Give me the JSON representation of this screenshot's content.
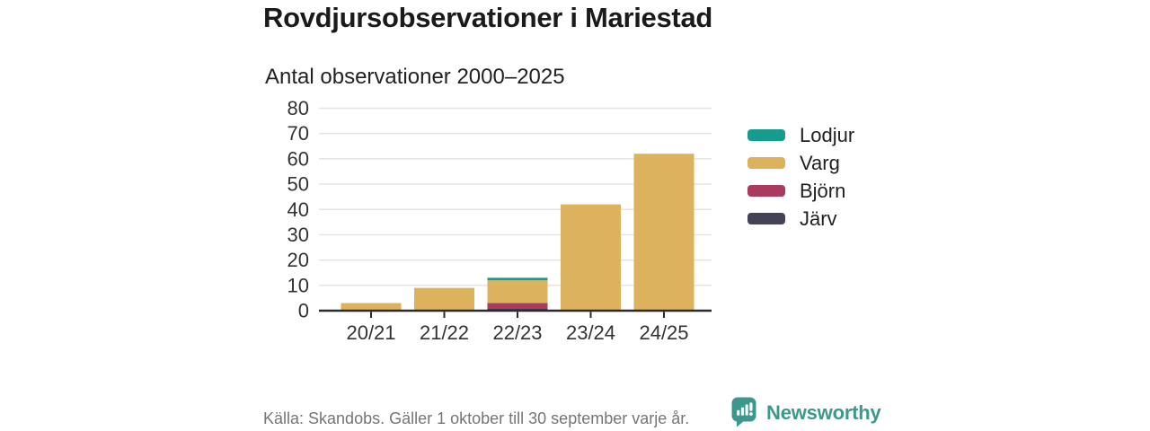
{
  "header": {
    "title": "Rovdjursobservationer i Mariestad",
    "subtitle": "Antal observationer 2000–2025"
  },
  "chart_data": {
    "type": "bar",
    "stacked": true,
    "title": "Rovdjursobservationer i Mariestad",
    "subtitle": "Antal observationer 2000–2025",
    "categories": [
      "20/21",
      "21/22",
      "22/23",
      "23/24",
      "24/25"
    ],
    "series": [
      {
        "name": "Lodjur",
        "color": "#169B8F",
        "values": [
          0,
          0,
          1,
          0,
          0
        ]
      },
      {
        "name": "Varg",
        "color": "#DDB25C",
        "values": [
          3,
          9,
          9,
          42,
          62
        ]
      },
      {
        "name": "Björn",
        "color": "#A93B5E",
        "values": [
          0,
          0,
          2,
          0,
          0
        ]
      },
      {
        "name": "Järv",
        "color": "#434257",
        "values": [
          0,
          0,
          1,
          0,
          0
        ]
      }
    ],
    "stack_order_bottom_to_top": [
      "Järv",
      "Björn",
      "Varg",
      "Lodjur"
    ],
    "totals": [
      3,
      9,
      13,
      42,
      62
    ],
    "ylim": [
      0,
      80
    ],
    "yticks": [
      0,
      10,
      20,
      30,
      40,
      50,
      60,
      70,
      80
    ],
    "grid": true,
    "legend_position": "right"
  },
  "style": {
    "axis_color": "#2B2B2B",
    "grid_color": "#E3E3E3",
    "tick_label_color": "#333333",
    "title_color": "#1A1A1A",
    "background": "#FFFFFF"
  },
  "footer": {
    "source": "Källa: Skandobs. Gäller 1 oktober till 30 september varje år.",
    "brand": "Newsworthy",
    "brand_color": "#3C988D",
    "brand_icon": "bar-chart-speech-bubble-icon"
  }
}
